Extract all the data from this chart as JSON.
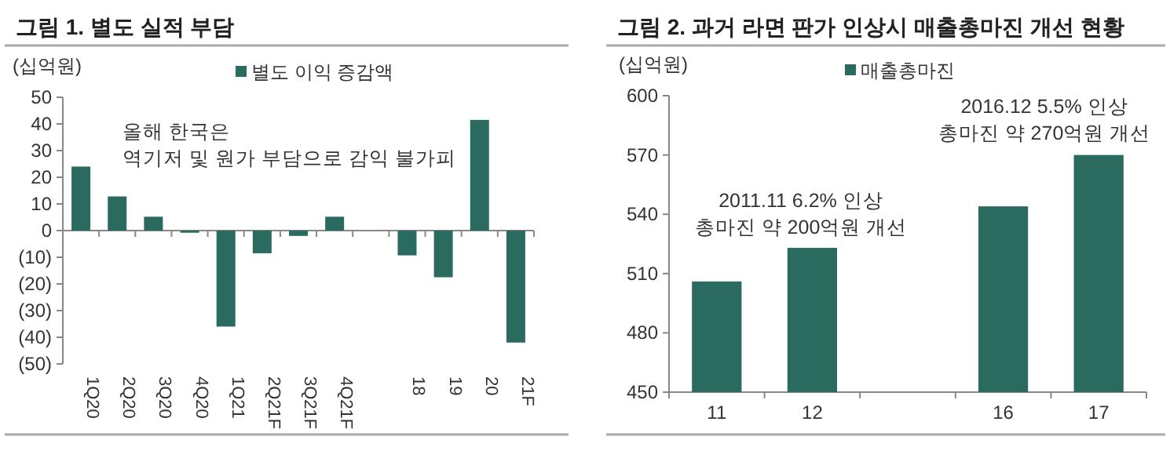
{
  "chart_data": [
    {
      "type": "bar",
      "title": "그림 1. 별도 실적 부담",
      "ylabel": "(십억원)",
      "legend": "top",
      "categories": [
        "1Q20",
        "2Q20",
        "3Q20",
        "4Q20",
        "1Q21",
        "2Q21F",
        "3Q21F",
        "4Q21F",
        null,
        "18",
        "19",
        "20",
        "21F"
      ],
      "series": [
        {
          "name": "별도 이익 증감액",
          "color": "#2b6a5e",
          "values": [
            24,
            12.8,
            5.2,
            -0.8,
            -36,
            -8.5,
            -2,
            5.2,
            null,
            -9.3,
            -17.5,
            41.5,
            -42
          ]
        }
      ],
      "ylim": [
        -50,
        50
      ],
      "yticks": [
        {
          "value": -50,
          "label": "(50)"
        },
        {
          "value": -40,
          "label": "(40)"
        },
        {
          "value": -30,
          "label": "(30)"
        },
        {
          "value": -20,
          "label": "(20)"
        },
        {
          "value": -10,
          "label": "(10)"
        },
        0,
        10,
        20,
        30,
        40,
        50
      ],
      "annotations": [
        "올해 한국은\n역기저 및 원가 부담으로 감익 불가피"
      ]
    },
    {
      "type": "bar",
      "title": "그림 2. 과거 라면 판가 인상시 매출총마진 개선 현황",
      "ylabel": "(십억원)",
      "legend": "top",
      "categories": [
        "11",
        "12",
        null,
        "16",
        "17"
      ],
      "series": [
        {
          "name": "매출총마진",
          "color": "#2b6a5e",
          "values": [
            506,
            523,
            null,
            544,
            570
          ]
        }
      ],
      "ylim": [
        450,
        600
      ],
      "yticks": [
        450,
        480,
        510,
        540,
        570,
        600
      ],
      "annotations": [
        "2011.11 6.2% 인상\n총마진 약 200억원 개선",
        "2016.12 5.5% 인상\n총마진 약 270억원 개선"
      ]
    }
  ]
}
